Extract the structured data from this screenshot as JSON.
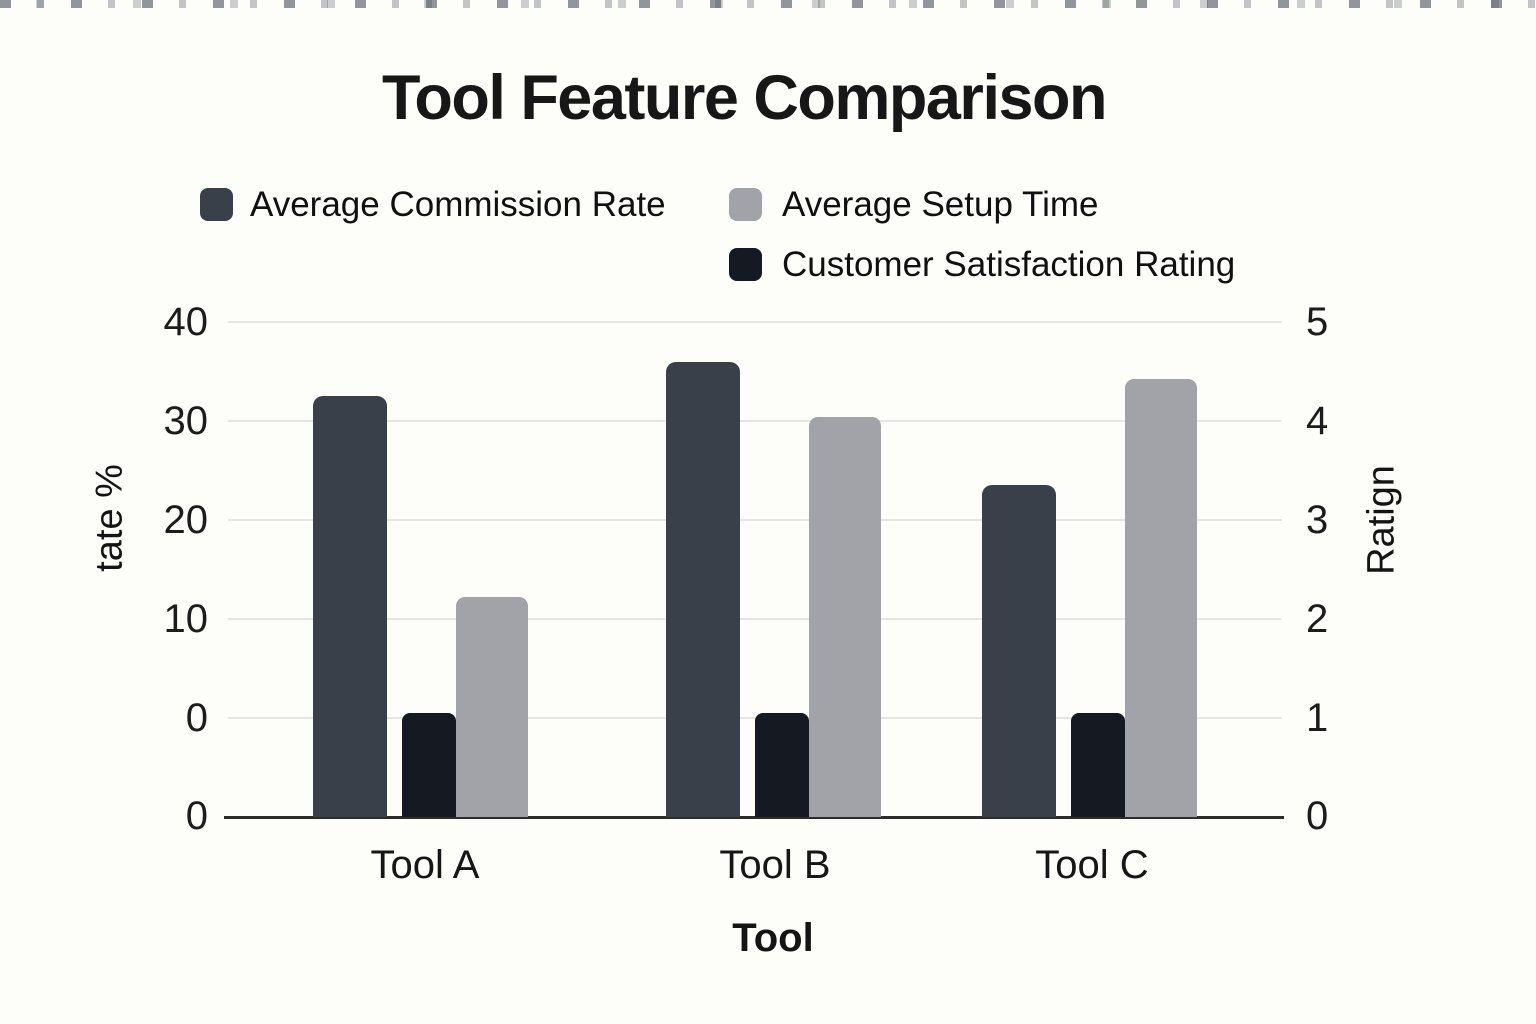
{
  "page": {
    "background": "#fdfdfa"
  },
  "chart_data": {
    "type": "bar",
    "title": "Tool Feature Comparison",
    "xlabel": "Tool",
    "ylabel_left": "tate %",
    "ylabel_right": "Ratign",
    "categories": [
      "Tool A",
      "Tool B",
      "Tool C"
    ],
    "series": [
      {
        "name": "Average Commission Rate",
        "axis": "left",
        "color": "#39404a",
        "values": [
          32.5,
          36.0,
          23.5
        ]
      },
      {
        "name": "Customer Satisfaction Rating",
        "axis": "right",
        "color": "#151921",
        "values": [
          1.05,
          1.05,
          1.05
        ]
      },
      {
        "name": "Average Setup Time",
        "axis": "left",
        "color": "#a1a3a8",
        "values": [
          12.2,
          30.4,
          34.2
        ]
      }
    ],
    "legend": [
      {
        "label": "Average Commission Rate",
        "color": "#39404a"
      },
      {
        "label": "Average Setup Time",
        "color": "#a1a3a8"
      },
      {
        "label": "Customer Satisfaction Rating",
        "color": "#151921"
      }
    ],
    "left_axis": {
      "range": [
        0,
        40
      ],
      "ticks": [
        "40",
        "30",
        "20",
        "10",
        "0",
        "0"
      ]
    },
    "right_axis": {
      "range": [
        0,
        5
      ],
      "ticks": [
        "5",
        "4",
        "3",
        "2",
        "1",
        "0"
      ]
    },
    "grid": true,
    "legend_position": "top"
  }
}
